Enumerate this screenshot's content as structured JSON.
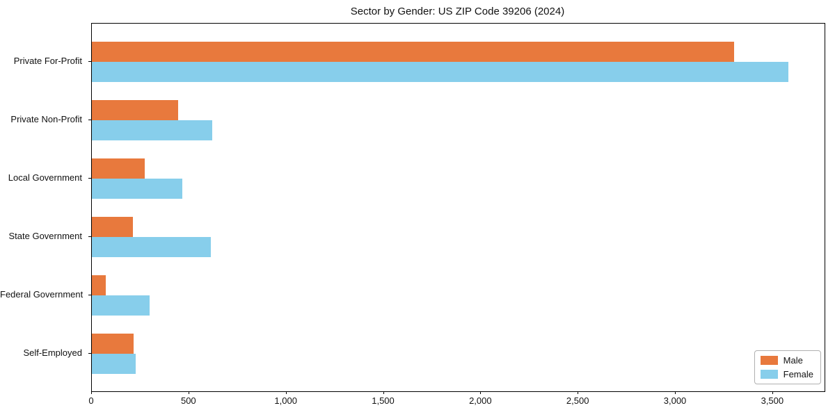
{
  "chart_data": {
    "type": "bar",
    "orientation": "horizontal",
    "title": "Sector by Gender: US ZIP Code 39206 (2024)",
    "categories": [
      "Private For-Profit",
      "Private Non-Profit",
      "Local Government",
      "State Government",
      "Federal Government",
      "Self-Employed"
    ],
    "series": [
      {
        "name": "Male",
        "color": "#E8793D",
        "values": [
          3300,
          445,
          270,
          210,
          70,
          215
        ]
      },
      {
        "name": "Female",
        "color": "#87CEEB",
        "values": [
          3580,
          620,
          465,
          610,
          295,
          225
        ]
      }
    ],
    "xlabel": "",
    "ylabel": "",
    "xlim": [
      0,
      3765
    ],
    "xticks": [
      0,
      500,
      1000,
      1500,
      2000,
      2500,
      3000,
      3500
    ],
    "xtick_labels": [
      "0",
      "500",
      "1,000",
      "1,500",
      "2,000",
      "2,500",
      "3,000",
      "3,500"
    ],
    "grid": false,
    "legend": {
      "position": "lower-right",
      "entries": [
        "Male",
        "Female"
      ]
    }
  }
}
